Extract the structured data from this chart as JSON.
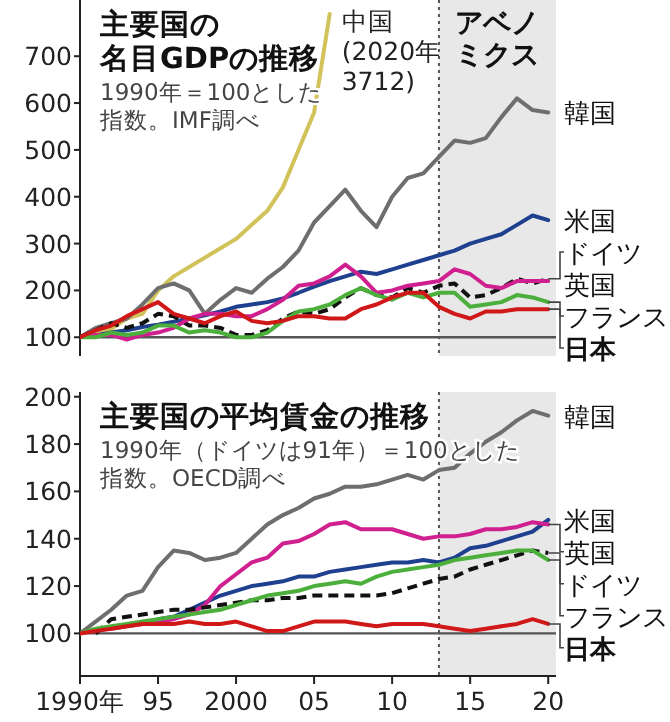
{
  "chart_data": [
    {
      "type": "line",
      "title": "主要国の名目GDPの推移",
      "subtitle": "1990年＝100とした指数。IMF調べ",
      "x": [
        1990,
        1991,
        1992,
        1993,
        1994,
        1995,
        1996,
        1997,
        1998,
        1999,
        2000,
        2001,
        2002,
        2003,
        2004,
        2005,
        2006,
        2007,
        2008,
        2009,
        2010,
        2011,
        2012,
        2013,
        2014,
        2015,
        2016,
        2017,
        2018,
        2019,
        2020
      ],
      "xlim": [
        1990,
        2020.5
      ],
      "ylim": [
        60,
        820
      ],
      "yticks": [
        100,
        200,
        300,
        400,
        500,
        600,
        700
      ],
      "tick_labels": "y",
      "series": [
        {
          "color": "#d2c25a",
          "x": [
            1990,
            1991,
            1992,
            1993,
            1994,
            1995,
            1996,
            1997,
            1998,
            1999,
            2000,
            2001,
            2002,
            2003,
            2004,
            2005,
            2006
          ],
          "values": [
            100,
            108,
            118,
            140,
            150,
            200,
            230,
            250,
            270,
            290,
            310,
            340,
            370,
            420,
            500,
            580,
            790
          ]
        },
        {
          "name": "韓国",
          "color": "#6e6e6e",
          "values": [
            100,
            120,
            130,
            140,
            170,
            205,
            215,
            200,
            150,
            180,
            205,
            195,
            225,
            250,
            285,
            345,
            380,
            415,
            370,
            335,
            400,
            440,
            450,
            485,
            520,
            515,
            525,
            570,
            610,
            585,
            580
          ]
        },
        {
          "name": "米国",
          "color": "#1f3f8f",
          "values": [
            100,
            104,
            110,
            115,
            122,
            127,
            133,
            140,
            147,
            155,
            165,
            170,
            175,
            183,
            195,
            208,
            220,
            230,
            240,
            235,
            245,
            255,
            265,
            275,
            285,
            300,
            310,
            320,
            340,
            360,
            350
          ]
        },
        {
          "name": "ドイツ",
          "color": "#111111",
          "line_style": "dashed",
          "values": [
            100,
            115,
            130,
            120,
            130,
            150,
            145,
            125,
            125,
            120,
            105,
            105,
            115,
            140,
            155,
            150,
            160,
            185,
            205,
            190,
            185,
            205,
            195,
            210,
            215,
            185,
            190,
            205,
            225,
            215,
            225
          ]
        },
        {
          "name": "英国",
          "color": "#d0208f",
          "values": [
            100,
            105,
            105,
            95,
            105,
            110,
            120,
            140,
            150,
            150,
            145,
            145,
            160,
            180,
            210,
            215,
            230,
            255,
            230,
            195,
            200,
            210,
            215,
            220,
            245,
            235,
            210,
            205,
            220,
            220,
            220
          ]
        },
        {
          "name": "フランス",
          "color": "#4caf3c",
          "values": [
            100,
            100,
            110,
            105,
            110,
            125,
            125,
            110,
            115,
            110,
            100,
            100,
            110,
            135,
            155,
            160,
            170,
            190,
            205,
            190,
            180,
            195,
            185,
            195,
            195,
            165,
            170,
            175,
            190,
            185,
            175
          ]
        },
        {
          "name": "日本",
          "color": "#d01818",
          "values": [
            100,
            115,
            125,
            145,
            160,
            175,
            150,
            140,
            130,
            145,
            155,
            135,
            130,
            135,
            145,
            145,
            140,
            140,
            160,
            170,
            185,
            195,
            195,
            165,
            150,
            140,
            155,
            155,
            160,
            160,
            160
          ]
        }
      ],
      "annotations": [
        {
          "text": "中国\n(2020年\n3712)",
          "x": 2006,
          "y": 790
        }
      ],
      "bands": [
        {
          "axis": "x",
          "from": 2013,
          "to": 2020.5,
          "label": "アベノミクス",
          "color": "#e8e8e8"
        }
      ],
      "ref_lines": [
        {
          "axis": "x",
          "value": 2013,
          "line_style": "dotted",
          "color": "#555555"
        },
        {
          "axis": "y",
          "value": 100,
          "color": "#555555"
        }
      ]
    },
    {
      "type": "line",
      "title": "主要国の平均賃金の推移",
      "subtitle": "1990年（ドイツは91年）＝100とした指数。OECD調べ",
      "x": [
        1990,
        1991,
        1992,
        1993,
        1994,
        1995,
        1996,
        1997,
        1998,
        1999,
        2000,
        2001,
        2002,
        2003,
        2004,
        2005,
        2006,
        2007,
        2008,
        2009,
        2010,
        2011,
        2012,
        2013,
        2014,
        2015,
        2016,
        2017,
        2018,
        2019,
        2020
      ],
      "xlim": [
        1990,
        2020.5
      ],
      "ylim": [
        82,
        202
      ],
      "yticks": [
        100,
        120,
        140,
        160,
        180,
        200
      ],
      "xticks": [
        {
          "value": 1990,
          "label": "1990年"
        },
        {
          "value": 1995,
          "label": "95"
        },
        2000,
        {
          "value": 2005,
          "label": "05"
        },
        {
          "value": 2010,
          "label": "10"
        },
        {
          "value": 2015,
          "label": "15"
        },
        {
          "value": 2020,
          "label": "20"
        }
      ],
      "series": [
        {
          "name": "韓国",
          "color": "#6e6e6e",
          "values": [
            100,
            105,
            110,
            116,
            118,
            128,
            135,
            134,
            131,
            132,
            134,
            140,
            146,
            150,
            153,
            157,
            159,
            162,
            162,
            163,
            165,
            167,
            165,
            169,
            170,
            176,
            181,
            185,
            190,
            194,
            192
          ]
        },
        {
          "name": "米国",
          "color": "#1f3f8f",
          "values": [
            null,
            null,
            null,
            null,
            null,
            106,
            107,
            110,
            113,
            116,
            118,
            120,
            121,
            122,
            124,
            124,
            126,
            127,
            128,
            129,
            130,
            130,
            131,
            130,
            132,
            136,
            137,
            139,
            141,
            143,
            148
          ]
        },
        {
          "name": "英国",
          "color": "#d0208f",
          "values": [
            null,
            null,
            102,
            103,
            104,
            105,
            106,
            108,
            112,
            120,
            125,
            130,
            132,
            138,
            139,
            142,
            146,
            147,
            144,
            144,
            144,
            142,
            140,
            141,
            141,
            142,
            144,
            144,
            145,
            147,
            146
          ]
        },
        {
          "name": "ドイツ",
          "color": "#111111",
          "line_style": "dashed",
          "x": [
            1991,
            1992,
            1993,
            1994,
            1995,
            1996,
            1997,
            1998,
            1999,
            2000,
            2001,
            2002,
            2003,
            2004,
            2005,
            2006,
            2007,
            2008,
            2009,
            2010,
            2011,
            2012,
            2013,
            2014,
            2015,
            2016,
            2017,
            2018,
            2019,
            2020
          ],
          "values": [
            100,
            106,
            107,
            108,
            109,
            110,
            110,
            111,
            112,
            113,
            114,
            114,
            115,
            115,
            116,
            116,
            116,
            116,
            116,
            117,
            119,
            121,
            123,
            124,
            127,
            129,
            131,
            133,
            135,
            134
          ]
        },
        {
          "name": "フランス",
          "color": "#4caf3c",
          "values": [
            100,
            102,
            103,
            104,
            105,
            106,
            107,
            108,
            109,
            110,
            112,
            114,
            116,
            117,
            118,
            120,
            121,
            122,
            121,
            124,
            126,
            127,
            128,
            129,
            131,
            132,
            133,
            134,
            135,
            135,
            131
          ]
        },
        {
          "name": "日本",
          "color": "#d01818",
          "values": [
            100,
            101,
            102,
            103,
            104,
            104,
            104,
            105,
            104,
            104,
            105,
            103,
            101,
            101,
            103,
            105,
            105,
            105,
            104,
            103,
            104,
            104,
            104,
            103,
            102,
            101,
            102,
            103,
            104,
            106,
            104
          ]
        }
      ],
      "bands": [
        {
          "axis": "x",
          "from": 2013,
          "to": 2020.5,
          "color": "#e8e8e8"
        }
      ],
      "ref_lines": [
        {
          "axis": "x",
          "value": 2013,
          "line_style": "dotted",
          "color": "#555555"
        },
        {
          "axis": "y",
          "value": 100,
          "color": "#555555"
        }
      ]
    }
  ]
}
